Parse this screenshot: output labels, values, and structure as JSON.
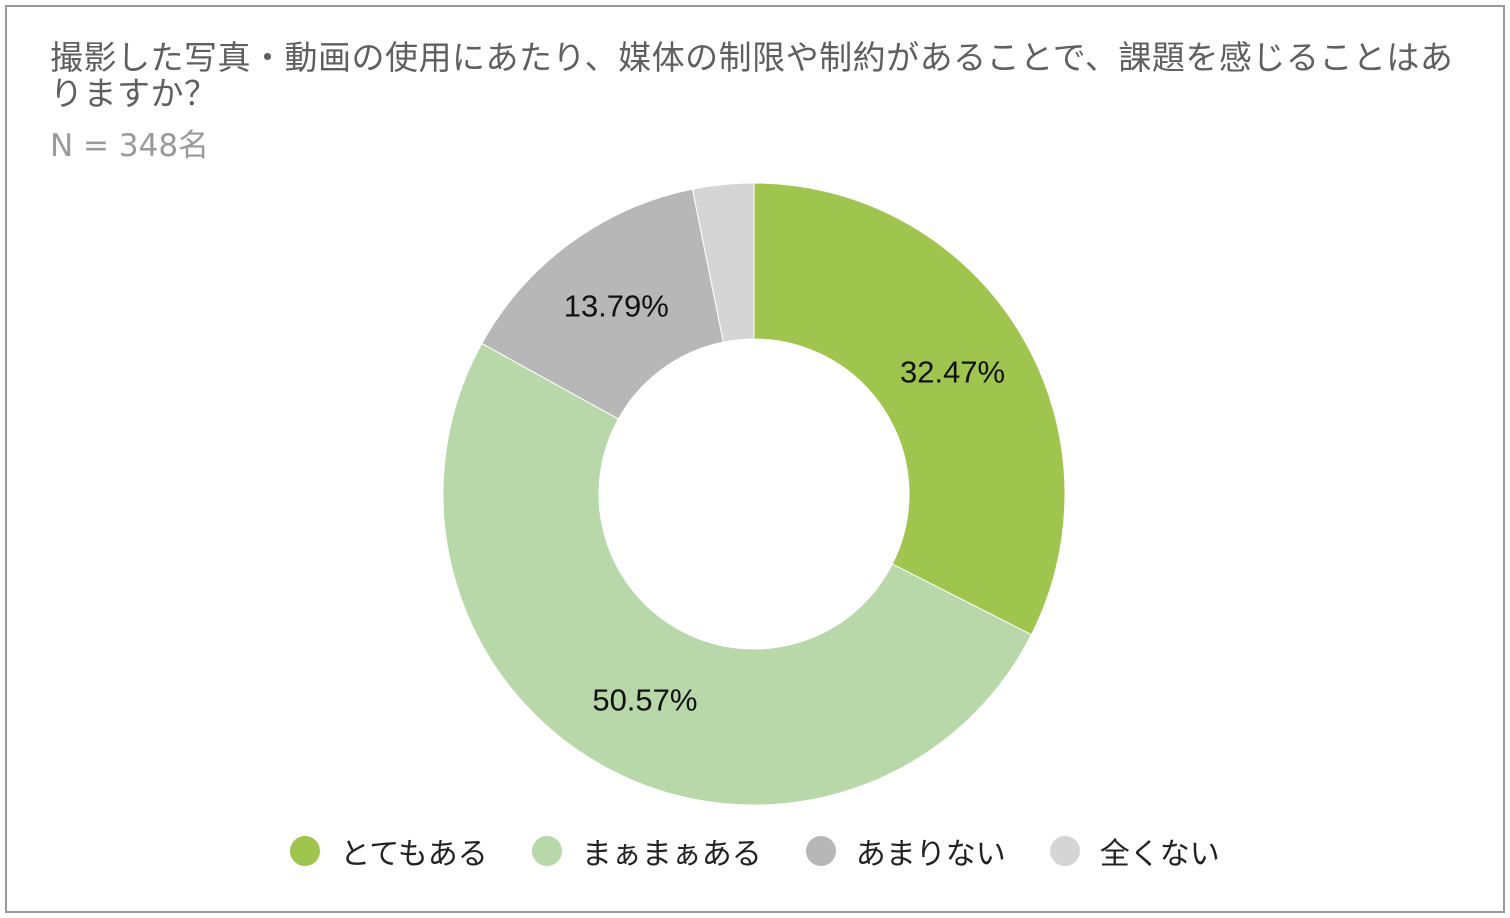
{
  "title": "撮影した写真・動画の使用にあたり、媒体の制限や制約があることで、課題を感じることはありますか？",
  "subtitle": "N = 348名",
  "chart_data": {
    "type": "pie",
    "variant": "donut",
    "title": "撮影した写真・動画の使用にあたり、媒体の制限や制約があることで、課題を感じることはありますか？",
    "subtitle": "N = 348名",
    "categories": [
      "とてもある",
      "まぁまぁある",
      "あまりない",
      "全くない"
    ],
    "values": [
      32.47,
      50.57,
      13.79,
      3.17
    ],
    "data_labels": [
      "32.47%",
      "50.57%",
      "13.79%",
      ""
    ],
    "colors": [
      "#a0c54e",
      "#b8d8aa",
      "#b7b7b7",
      "#d5d5d5"
    ],
    "legend_position": "bottom",
    "start_angle": "12 o'clock",
    "direction": "clockwise"
  }
}
